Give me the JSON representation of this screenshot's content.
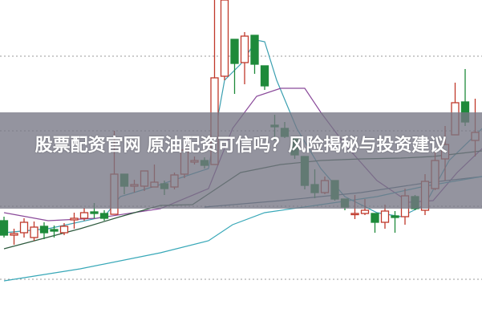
{
  "overlay": {
    "title": "股票配资官网 原油配资可信吗？风险揭秘与投资建议"
  },
  "chart_data": {
    "type": "candlestick",
    "title": "",
    "xlabel": "",
    "ylabel": "",
    "ylim": [
      0,
      400
    ],
    "grid": {
      "horizontal_dotted": true,
      "levels": [
        330,
        237,
        143,
        52
      ]
    },
    "colors": {
      "up": "#c0392b",
      "down": "#1e8a3a",
      "ma_fast": "#3a9fb0",
      "ma_mid": "#8a4a9a",
      "ma_slow": "#2e5a3e",
      "ma_gray": "#4a7080",
      "ma_long": "#38a8b8",
      "grid": "#999999"
    },
    "candles": [
      [
        125,
        130,
        104,
        107
      ],
      [
        107,
        115,
        95,
        109
      ],
      [
        110,
        128,
        104,
        123
      ],
      [
        104,
        124,
        100,
        117
      ],
      [
        118,
        123,
        102,
        110
      ],
      [
        114,
        119,
        104,
        112
      ],
      [
        110,
        122,
        107,
        118
      ],
      [
        126,
        135,
        115,
        128
      ],
      [
        128,
        141,
        125,
        135
      ],
      [
        136,
        147,
        128,
        134
      ],
      [
        134,
        138,
        125,
        128
      ],
      [
        133,
        237,
        133,
        183
      ],
      [
        183,
        183,
        158,
        168
      ],
      [
        168,
        176,
        160,
        170
      ],
      [
        168,
        187,
        162,
        187
      ],
      [
        167,
        195,
        167,
        173
      ],
      [
        171,
        175,
        157,
        165
      ],
      [
        167,
        185,
        164,
        182
      ],
      [
        183,
        218,
        178,
        213
      ],
      [
        198,
        205,
        195,
        200
      ],
      [
        200,
        204,
        190,
        194
      ],
      [
        195,
        400,
        195,
        303
      ],
      [
        305,
        400,
        300,
        400
      ],
      [
        351,
        351,
        283,
        321
      ],
      [
        322,
        360,
        295,
        355
      ],
      [
        356,
        356,
        308,
        320
      ],
      [
        318,
        318,
        288,
        293
      ],
      [
        244,
        257,
        225,
        242
      ],
      [
        240,
        248,
        228,
        230
      ],
      [
        229,
        229,
        202,
        207
      ],
      [
        205,
        205,
        164,
        169
      ],
      [
        170,
        189,
        153,
        160
      ],
      [
        160,
        180,
        158,
        175
      ],
      [
        175,
        175,
        150,
        152
      ],
      [
        152,
        152,
        138,
        142
      ],
      [
        133,
        157,
        127,
        134
      ],
      [
        134,
        152,
        132,
        138
      ],
      [
        134,
        134,
        110,
        123
      ],
      [
        123,
        145,
        115,
        137
      ],
      [
        131,
        137,
        110,
        129
      ],
      [
        130,
        165,
        120,
        156
      ],
      [
        155,
        157,
        138,
        140
      ],
      [
        138,
        183,
        132,
        174
      ],
      [
        165,
        212,
        163,
        200
      ],
      [
        202,
        243,
        175,
        220
      ],
      [
        232,
        297,
        232,
        272
      ],
      [
        273,
        314,
        243,
        248
      ],
      [
        225,
        277,
        205,
        235
      ]
    ],
    "candle_format": [
      "open",
      "high",
      "low",
      "close"
    ],
    "lines": [
      {
        "key": "ma_fast",
        "points": [
          [
            0,
            110
          ],
          [
            4.4,
            115
          ],
          [
            10,
            130
          ],
          [
            11.6,
            155
          ],
          [
            15.6,
            170
          ],
          [
            20.4,
            190
          ],
          [
            22,
            300
          ],
          [
            23.6,
            320
          ],
          [
            25.2,
            350
          ],
          [
            26,
            348
          ],
          [
            27.2,
            300
          ],
          [
            29.2,
            240
          ],
          [
            31.6,
            190
          ],
          [
            34,
            155
          ],
          [
            37.2,
            135
          ],
          [
            39.6,
            130
          ],
          [
            42,
            145
          ],
          [
            44.4,
            200
          ],
          [
            47.7,
            240
          ]
        ]
      },
      {
        "key": "ma_mid",
        "points": [
          [
            0,
            135
          ],
          [
            4.4,
            125
          ],
          [
            9.2,
            128
          ],
          [
            15.6,
            140
          ],
          [
            20.4,
            165
          ],
          [
            22.8,
            240
          ],
          [
            25.2,
            280
          ],
          [
            27.6,
            290
          ],
          [
            30,
            290
          ],
          [
            31.6,
            260
          ],
          [
            34,
            220
          ],
          [
            37.2,
            175
          ],
          [
            40.4,
            148
          ],
          [
            42.8,
            150
          ],
          [
            45.2,
            185
          ],
          [
            47.7,
            215
          ]
        ]
      },
      {
        "key": "ma_slow",
        "points": [
          [
            0,
            90
          ],
          [
            7.6,
            115
          ],
          [
            11.6,
            130
          ],
          [
            15.6,
            144
          ],
          [
            18.8,
            145
          ],
          [
            21.2,
            165
          ],
          [
            23.6,
            185
          ],
          [
            27.6,
            195
          ],
          [
            31.6,
            200
          ],
          [
            35.6,
            202
          ],
          [
            39.6,
            203
          ],
          [
            42.8,
            205
          ],
          [
            47.7,
            212
          ]
        ]
      },
      {
        "key": "ma_gray",
        "points": [
          [
            20,
            142
          ],
          [
            27.6,
            150
          ],
          [
            35.6,
            160
          ],
          [
            42,
            172
          ],
          [
            47.7,
            180
          ]
        ]
      },
      {
        "key": "ma_long",
        "points": [
          [
            0,
            50
          ],
          [
            7.6,
            65
          ],
          [
            15.6,
            85
          ],
          [
            20.4,
            100
          ],
          [
            22.8,
            120
          ],
          [
            26,
            135
          ],
          [
            31.6,
            145
          ],
          [
            37.2,
            155
          ],
          [
            42,
            168
          ],
          [
            47.7,
            180
          ]
        ]
      }
    ]
  }
}
